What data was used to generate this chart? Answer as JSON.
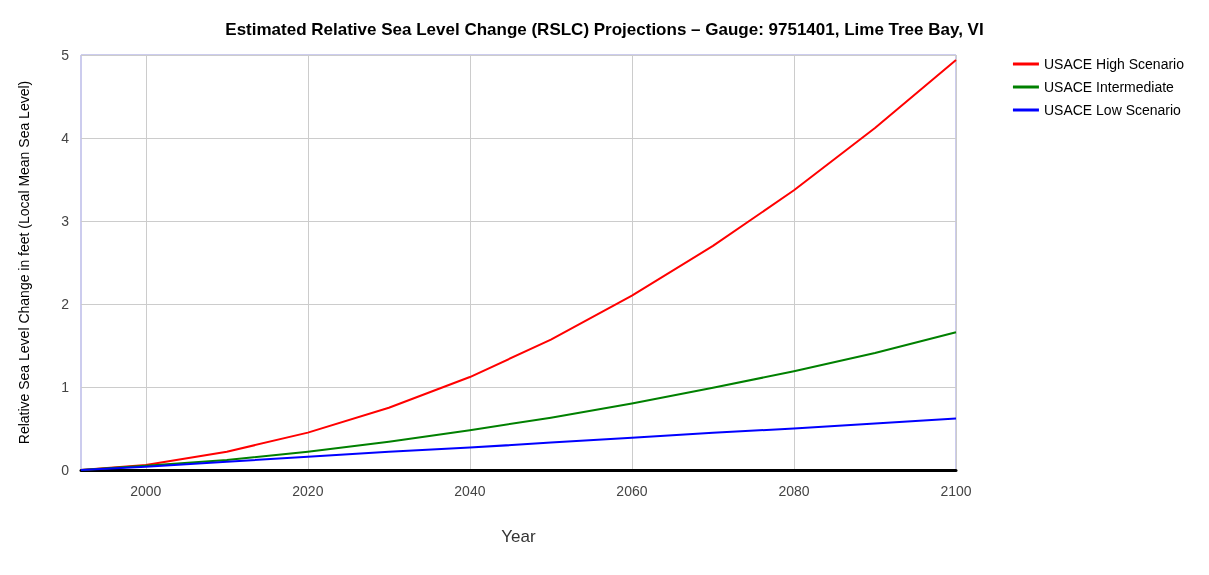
{
  "chart_data": {
    "type": "line",
    "title": "Estimated Relative Sea Level Change (RSLC) Projections – Gauge: 9751401, Lime Tree Bay, VI",
    "xlabel": "Year",
    "ylabel": "Relative Sea Level Change in feet (Local Mean Sea Level)",
    "x": [
      1992,
      2000,
      2010,
      2020,
      2030,
      2040,
      2050,
      2060,
      2070,
      2080,
      2090,
      2100
    ],
    "series": [
      {
        "name": "USACE High Scenario",
        "color": "#ff0000",
        "values": [
          0,
          0.06,
          0.22,
          0.45,
          0.75,
          1.12,
          1.57,
          2.1,
          2.7,
          3.37,
          4.12,
          4.94
        ]
      },
      {
        "name": "USACE Intermediate",
        "color": "#008000",
        "values": [
          0,
          0.05,
          0.12,
          0.22,
          0.34,
          0.48,
          0.63,
          0.8,
          0.99,
          1.19,
          1.41,
          1.66
        ]
      },
      {
        "name": "USACE Low Scenario",
        "color": "#0000ff",
        "values": [
          0,
          0.04,
          0.1,
          0.16,
          0.22,
          0.27,
          0.33,
          0.39,
          0.45,
          0.5,
          0.56,
          0.62
        ]
      }
    ],
    "xlim": [
      1992,
      2100
    ],
    "xticks": [
      2000,
      2020,
      2040,
      2060,
      2080,
      2100
    ],
    "ylim": [
      0,
      5
    ],
    "yticks": [
      0,
      1,
      2,
      3,
      4,
      5
    ],
    "grid": true,
    "legend": "top right",
    "marker": "none",
    "line_style": "solid"
  }
}
